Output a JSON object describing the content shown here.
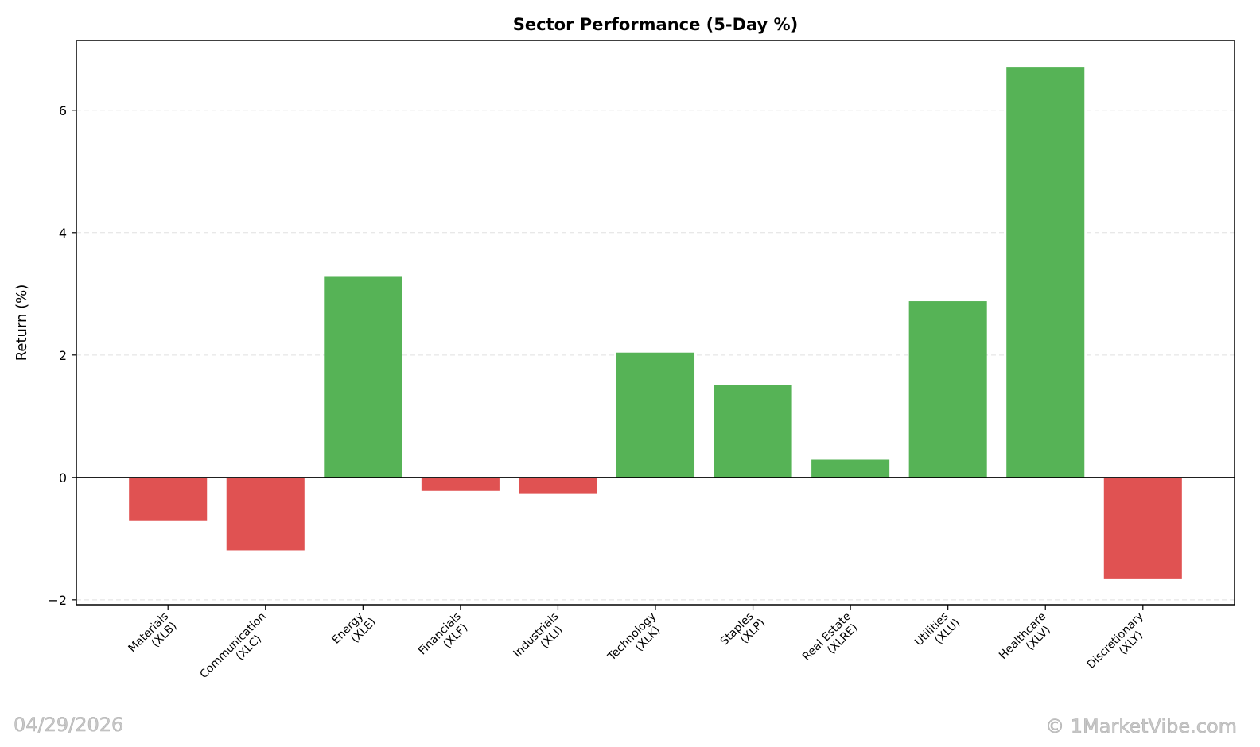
{
  "chart_data": {
    "type": "bar",
    "title": "Sector Performance (5-Day %)",
    "xlabel": "",
    "ylabel": "Return (%)",
    "categories": [
      [
        "Materials",
        "(XLB)"
      ],
      [
        "Communication",
        "(XLC)"
      ],
      [
        "Energy",
        "(XLE)"
      ],
      [
        "Financials",
        "(XLF)"
      ],
      [
        "Industrials",
        "(XLI)"
      ],
      [
        "Technology",
        "(XLK)"
      ],
      [
        "Staples",
        "(XLP)"
      ],
      [
        "Real Estate",
        "(XLRE)"
      ],
      [
        "Utilities",
        "(XLU)"
      ],
      [
        "Healthcare",
        "(XLV)"
      ],
      [
        "Discretionary",
        "(XLY)"
      ]
    ],
    "values": [
      -0.7,
      -1.19,
      3.29,
      -0.22,
      -0.27,
      2.04,
      1.51,
      0.29,
      2.88,
      6.71,
      -1.65
    ],
    "ylim": [
      -2.08,
      7.14
    ],
    "yticks": [
      -2,
      0,
      2,
      4,
      6
    ],
    "ytick_labels": [
      "−2",
      "0",
      "2",
      "4",
      "6"
    ],
    "grid": "y-dashed",
    "colors": {
      "positive": "#56b356",
      "negative": "#e05252",
      "grid": "#e0e0e0"
    }
  },
  "watermark": {
    "date": "04/29/2026",
    "copyright": "© 1MarketVibe.com"
  }
}
